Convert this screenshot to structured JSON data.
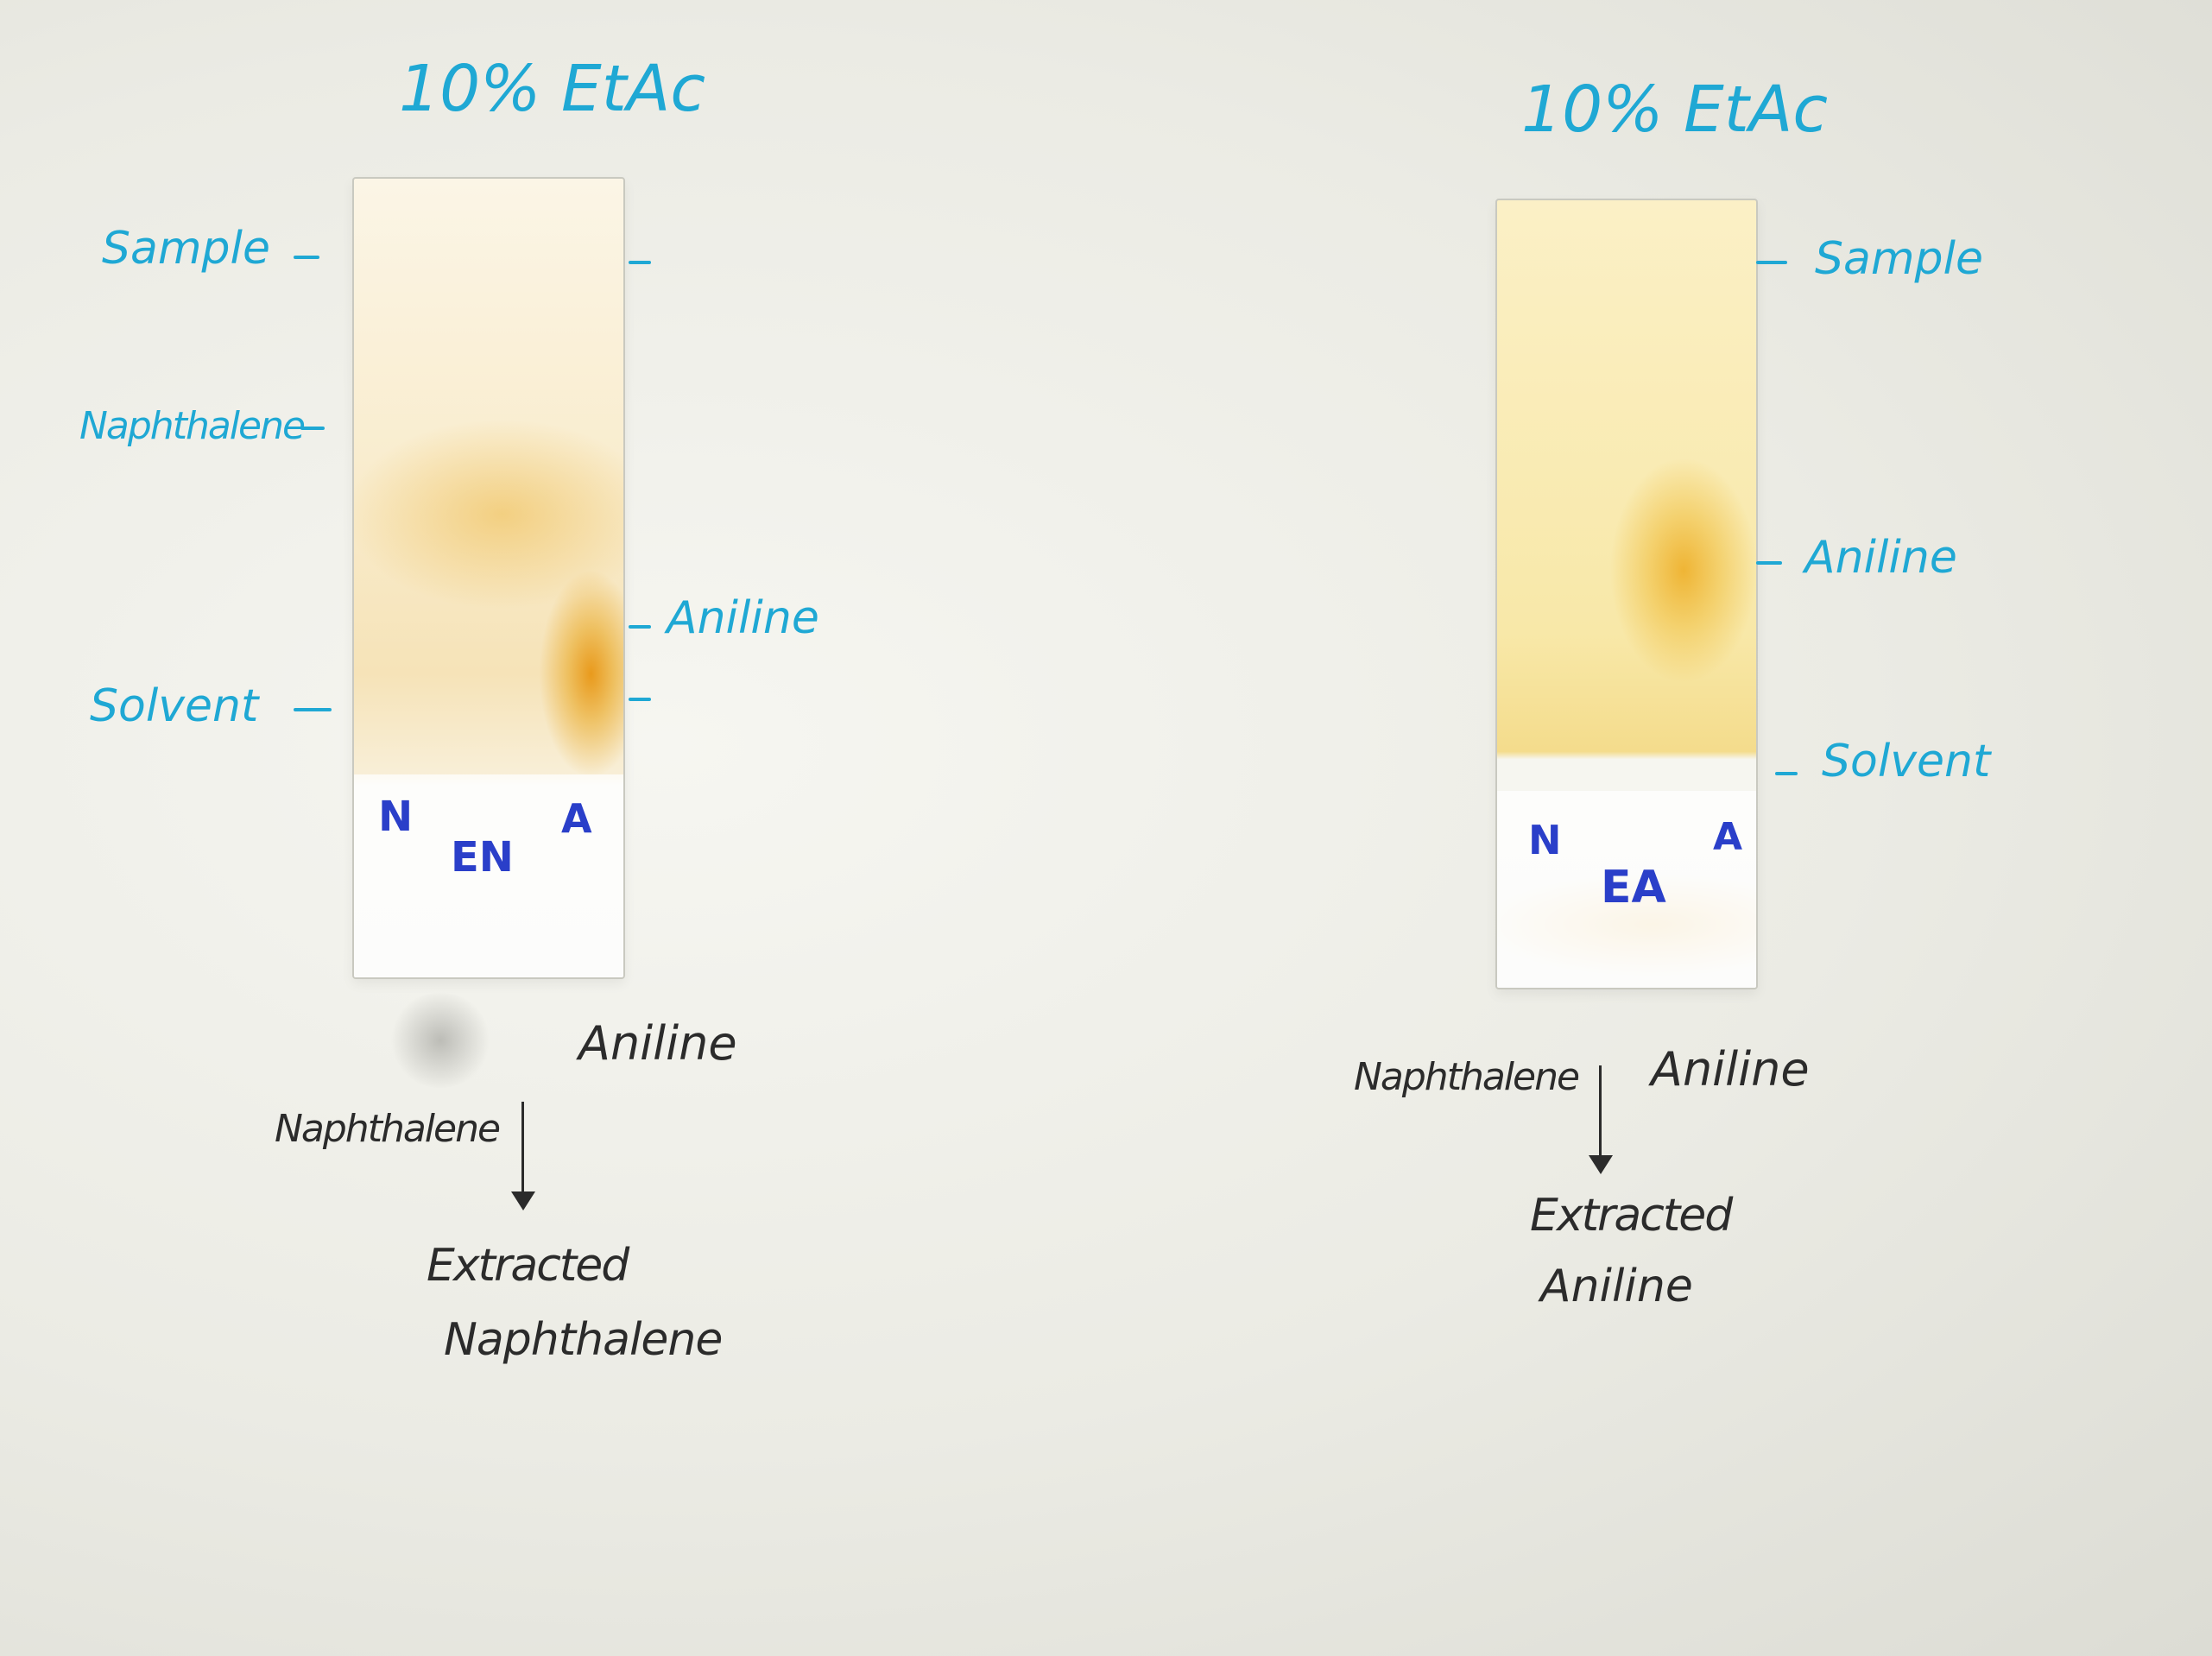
{
  "left": {
    "title": "10% EtAc",
    "labels": {
      "sample": "Sample",
      "naphthalene": "Naphthalene",
      "aniline": "Aniline",
      "solvent": "Solvent"
    },
    "lanes": [
      "N",
      "EN",
      "A"
    ],
    "note": {
      "aniline": "Aniline",
      "naphthalene": "Naphthalene",
      "extracted": "Extracted",
      "extracted_compound": "Naphthalene"
    }
  },
  "right": {
    "title": "10% EtAc",
    "labels": {
      "sample": "Sample",
      "aniline": "Aniline",
      "solvent": "Solvent"
    },
    "lanes": [
      "N",
      "EA",
      "A"
    ],
    "note": {
      "naphthalene": "Naphthalene",
      "aniline": "Aniline",
      "extracted": "Extracted",
      "extracted_compound": "Aniline"
    }
  },
  "colors": {
    "label_ink": "#1fa8d4",
    "lane_ink": "#2a3fc9",
    "note_ink": "#2b2b2b",
    "spot": "#e8a317",
    "plate_tint_left": "#fbf3dc",
    "plate_tint_right": "#fbeebb"
  }
}
